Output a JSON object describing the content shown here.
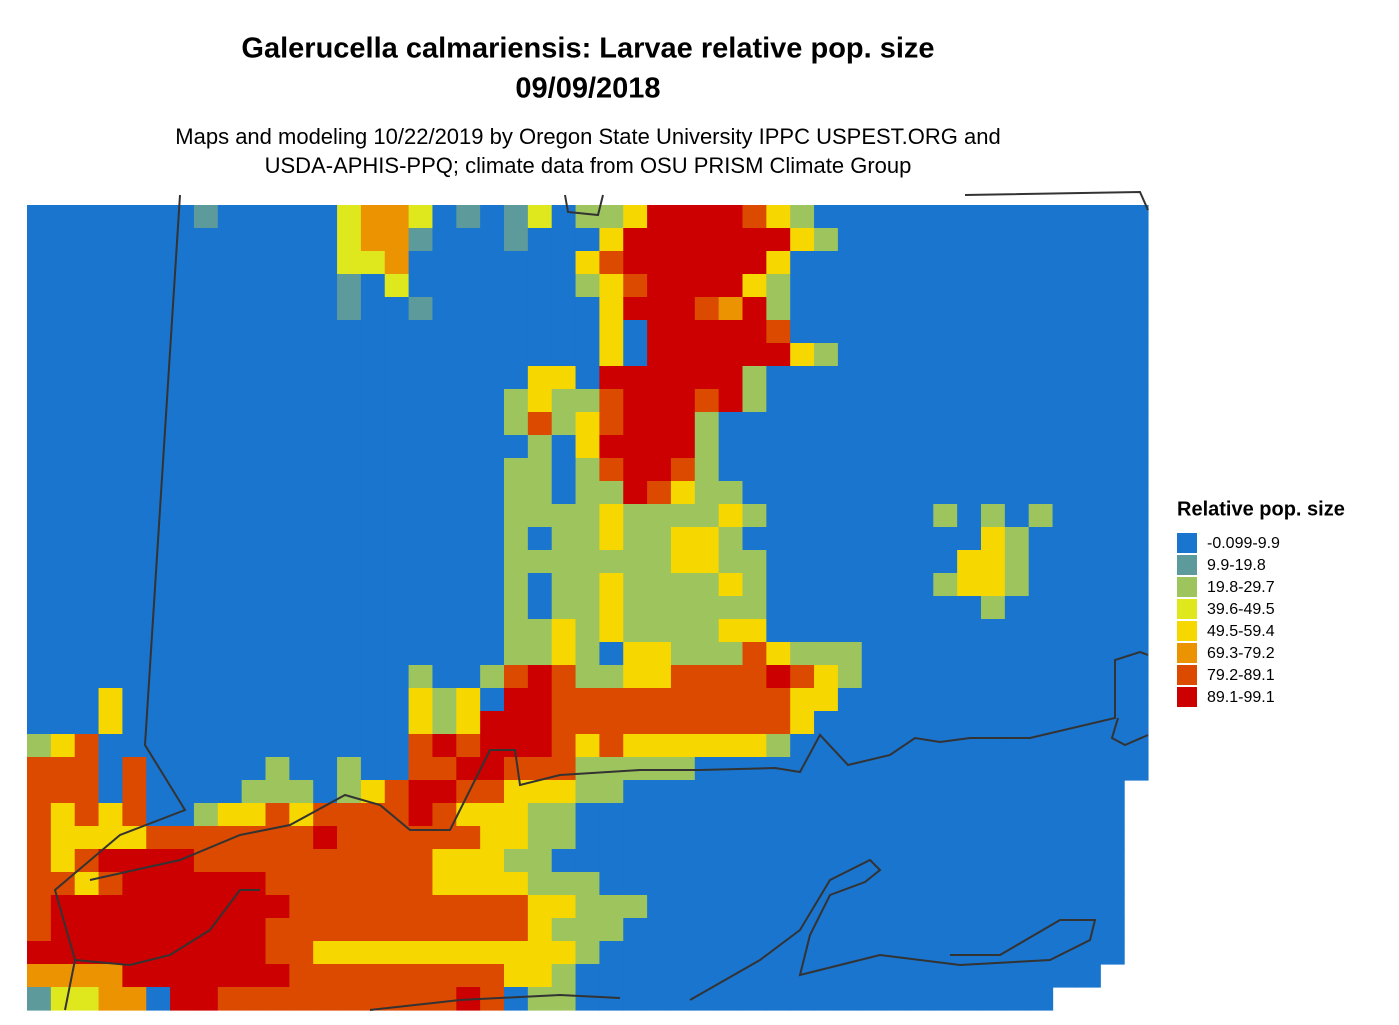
{
  "title": [
    "Galerucella calmariensis: Larvae relative pop. size",
    "09/09/2018"
  ],
  "subtitle": [
    "Maps and modeling 10/22/2019 by Oregon State University IPPC USPEST.ORG and",
    "USDA-APHIS-PPQ; climate data from OSU PRISM Climate Group"
  ],
  "legend": {
    "title": "Relative pop. size",
    "items": [
      {
        "label": "-0.099-9.9",
        "color": "#1a75cf"
      },
      {
        "label": "9.9-19.8",
        "color": "#5c9a9c"
      },
      {
        "label": "19.8-29.7",
        "color": "#9ec45e"
      },
      {
        "label": "39.6-49.5",
        "color": "#dfe81c"
      },
      {
        "label": "49.5-59.4",
        "color": "#f6d800"
      },
      {
        "label": "69.3-79.2",
        "color": "#eb9300"
      },
      {
        "label": "79.2-89.1",
        "color": "#dc4a00"
      },
      {
        "label": "89.1-99.1",
        "color": "#cc0000"
      }
    ]
  }
}
